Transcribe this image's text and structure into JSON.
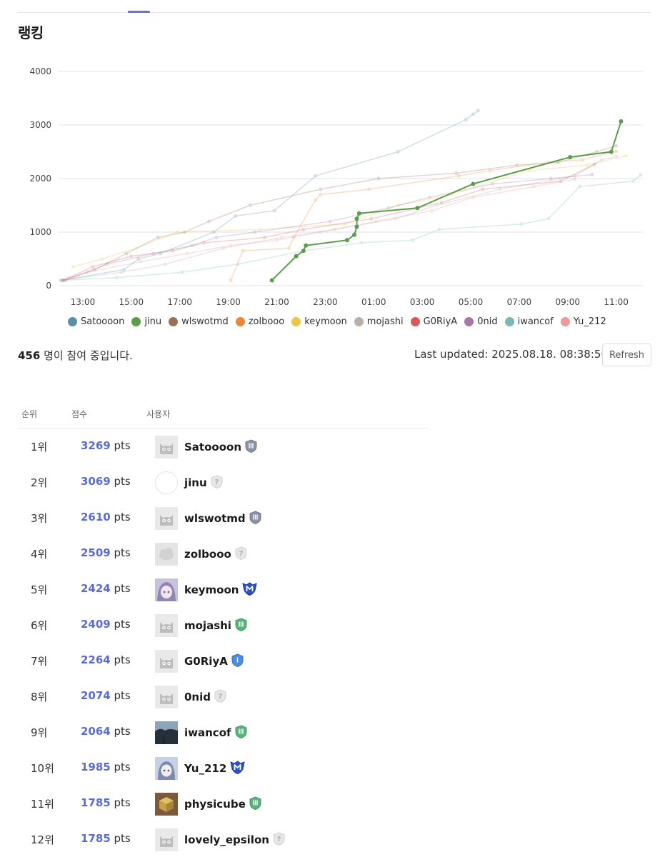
{
  "page": {
    "title": "랭킹"
  },
  "stats": {
    "participants_count": "456",
    "participants_suffix": " 명이 참여 중입니다.",
    "last_updated": "Last updated: 2025.08.18. 08:38:56",
    "refresh_label": "Refresh"
  },
  "table": {
    "headers": {
      "rank": "순위",
      "score": "점수",
      "user": "사용자"
    },
    "score_unit": " pts",
    "rows": [
      {
        "rank": "1위",
        "score": "3269",
        "user": "Satoooon",
        "avatar": "cat-gray",
        "badge": "silver-shield"
      },
      {
        "rank": "2위",
        "score": "3069",
        "user": "jinu",
        "avatar": "blank",
        "badge": "unknown"
      },
      {
        "rank": "3위",
        "score": "2610",
        "user": "wlswotmd",
        "avatar": "cat-gray",
        "badge": "silver-shield"
      },
      {
        "rank": "4위",
        "score": "2509",
        "user": "zolbooo",
        "avatar": "cloud",
        "badge": "unknown"
      },
      {
        "rank": "5위",
        "score": "2424",
        "user": "keymoon",
        "avatar": "anime-purple",
        "badge": "master"
      },
      {
        "rank": "6위",
        "score": "2409",
        "user": "mojashi",
        "avatar": "cat-gray",
        "badge": "green-shield"
      },
      {
        "rank": "7위",
        "score": "2264",
        "user": "G0RiyA",
        "avatar": "cat-gray",
        "badge": "blue-shield"
      },
      {
        "rank": "8위",
        "score": "2074",
        "user": "0nid",
        "avatar": "cat-gray",
        "badge": "unknown"
      },
      {
        "rank": "9위",
        "score": "2064",
        "user": "iwancof",
        "avatar": "photo-dark",
        "badge": "green-shield"
      },
      {
        "rank": "10위",
        "score": "1985",
        "user": "Yu_212",
        "avatar": "anime-blue",
        "badge": "master"
      },
      {
        "rank": "11위",
        "score": "1785",
        "user": "physicube",
        "avatar": "cube",
        "badge": "green-shield"
      },
      {
        "rank": "12위",
        "score": "1785",
        "user": "lovely_epsilon",
        "avatar": "cat-gray",
        "badge": "unknown"
      }
    ]
  },
  "chart_data": {
    "type": "line",
    "title": "",
    "xlabel": "",
    "ylabel": "",
    "x_unit": "hours since 12:00 (2025.08.17)",
    "xlim": [
      0,
      24.1
    ],
    "ylim": [
      0,
      4000
    ],
    "y_ticks": [
      0,
      1000,
      2000,
      3000,
      4000
    ],
    "x_ticks": [
      {
        "x": 1,
        "label": "13:00"
      },
      {
        "x": 3,
        "label": "15:00"
      },
      {
        "x": 5,
        "label": "17:00"
      },
      {
        "x": 7,
        "label": "19:00"
      },
      {
        "x": 9,
        "label": "21:00"
      },
      {
        "x": 11,
        "label": "23:00"
      },
      {
        "x": 13,
        "label": "01:00"
      },
      {
        "x": 15,
        "label": "03:00"
      },
      {
        "x": 17,
        "label": "05:00"
      },
      {
        "x": 19,
        "label": "07:00"
      },
      {
        "x": 21,
        "label": "09:00"
      },
      {
        "x": 23,
        "label": "11:00"
      }
    ],
    "grid": true,
    "legend_position": "bottom",
    "highlighted_series": "jinu",
    "series": [
      {
        "name": "Satoooon",
        "color": "#5b8fa8",
        "x": [
          0.1,
          2.7,
          3.3,
          4.2,
          6.4,
          7.3,
          8.9,
          10.6,
          14.0,
          16.8,
          17.1,
          17.3
        ],
        "y": [
          100,
          300,
          500,
          600,
          1000,
          1300,
          1400,
          2050,
          2500,
          3100,
          3200,
          3269
        ]
      },
      {
        "name": "jinu",
        "color": "#5a9e4b",
        "x": [
          8.8,
          9.8,
          10.1,
          10.2,
          11.9,
          12.2,
          12.3,
          12.3,
          12.4,
          14.8,
          17.1,
          21.1,
          22.8,
          23.2
        ],
        "y": [
          100,
          550,
          650,
          750,
          850,
          950,
          1100,
          1250,
          1350,
          1450,
          1900,
          2400,
          2500,
          3069
        ]
      },
      {
        "name": "wlswotmd",
        "color": "#9c6f5a",
        "x": [
          0.2,
          1.5,
          2.8,
          4.1,
          5.2,
          6.2,
          7.9,
          10.8,
          13.2,
          16.4,
          18.9,
          20.6,
          22.2,
          23.0
        ],
        "y": [
          100,
          300,
          600,
          900,
          1000,
          1200,
          1500,
          1800,
          2000,
          2100,
          2250,
          2300,
          2500,
          2610
        ]
      },
      {
        "name": "zolbooo",
        "color": "#e8893a",
        "x": [
          7.1,
          7.6,
          9.5,
          9.7,
          10.6,
          10.8,
          12.8,
          16.5,
          17.8,
          20.2,
          21.6,
          23.0
        ],
        "y": [
          100,
          650,
          700,
          900,
          1600,
          1700,
          1800,
          2050,
          2150,
          2300,
          2350,
          2509
        ]
      },
      {
        "name": "keymoon",
        "color": "#e9c64a",
        "x": [
          0.6,
          1.8,
          3.2,
          4.9,
          8.3,
          11.8,
          14.0,
          16.2,
          19.4,
          21.8,
          23.4
        ],
        "y": [
          350,
          500,
          700,
          1000,
          1050,
          1150,
          1500,
          1700,
          2150,
          2250,
          2424
        ]
      },
      {
        "name": "mojashi",
        "color": "#b7b0a8",
        "x": [
          0.1,
          2.6,
          4.4,
          6.8,
          9.2,
          11.4,
          13.9,
          15.6,
          18.2,
          21.3,
          22.4,
          23.0
        ],
        "y": [
          100,
          250,
          400,
          700,
          900,
          1050,
          1250,
          1500,
          1800,
          2050,
          2350,
          2409
        ]
      },
      {
        "name": "G0RiyA",
        "color": "#d65a5a",
        "x": [
          0.2,
          1.4,
          3.0,
          4.7,
          6.0,
          8.5,
          10.1,
          12.9,
          15.8,
          17.5,
          20.7,
          22.1
        ],
        "y": [
          100,
          350,
          550,
          650,
          800,
          900,
          1050,
          1250,
          1550,
          1800,
          1950,
          2264
        ]
      },
      {
        "name": "0nid",
        "color": "#a877a8",
        "x": [
          0.3,
          2.0,
          3.9,
          5.5,
          6.5,
          8.1,
          11.2,
          13.6,
          15.3,
          17.9,
          20.3,
          22.0
        ],
        "y": [
          100,
          400,
          600,
          750,
          900,
          1000,
          1200,
          1450,
          1650,
          1900,
          2000,
          2074
        ]
      },
      {
        "name": "iwancof",
        "color": "#79b8b7",
        "x": [
          0.2,
          2.4,
          5.1,
          7.4,
          10.1,
          12.5,
          14.6,
          15.7,
          19.1,
          20.2,
          21.5,
          23.7,
          24.0
        ],
        "y": [
          100,
          150,
          250,
          400,
          650,
          800,
          850,
          1050,
          1150,
          1250,
          1850,
          1950,
          2064
        ]
      },
      {
        "name": "Yu_212",
        "color": "#ef9a9a",
        "x": [
          0.4,
          1.2,
          3.4,
          5.3,
          7.1,
          9.0,
          10.8,
          13.1,
          15.4,
          17.1,
          19.6,
          21.3
        ],
        "y": [
          150,
          250,
          450,
          600,
          750,
          850,
          1000,
          1200,
          1400,
          1650,
          1850,
          1985
        ]
      }
    ]
  }
}
